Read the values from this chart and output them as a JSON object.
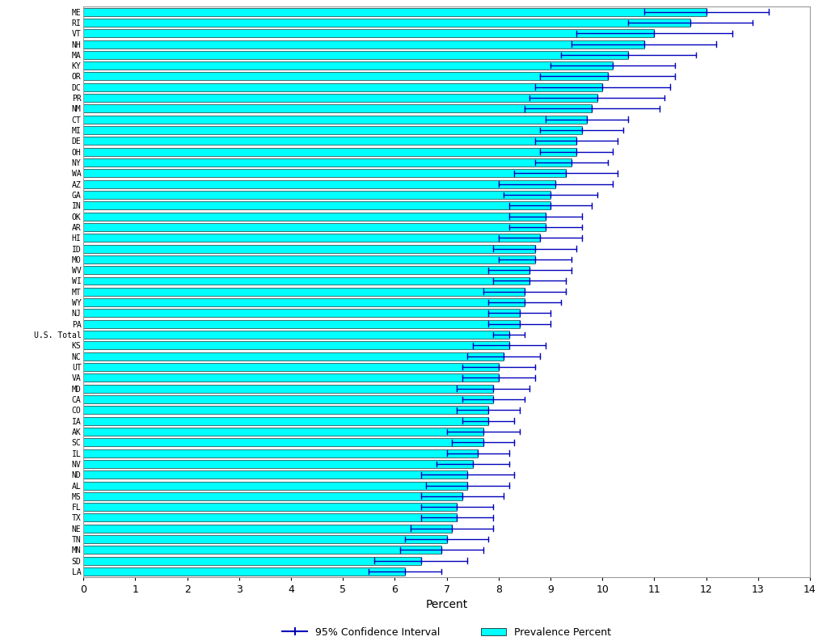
{
  "xlabel": "Percent",
  "xlim": [
    0,
    14
  ],
  "xticks": [
    0,
    1,
    2,
    3,
    4,
    5,
    6,
    7,
    8,
    9,
    10,
    11,
    12,
    13,
    14
  ],
  "bar_color": "#00FFFF",
  "bar_edge_color": "#000000",
  "ci_color": "#0000BB",
  "states": [
    "ME",
    "RI",
    "VT",
    "NH",
    "MA",
    "KY",
    "OR",
    "DC",
    "PR",
    "NM",
    "CT",
    "MI",
    "DE",
    "OH",
    "NY",
    "WA",
    "AZ",
    "GA",
    "IN",
    "OK",
    "AR",
    "HI",
    "ID",
    "MO",
    "WV",
    "WI",
    "MT",
    "WY",
    "NJ",
    "PA",
    "U.S. Total",
    "KS",
    "NC",
    "UT",
    "VA",
    "MD",
    "CA",
    "CO",
    "IA",
    "AK",
    "SC",
    "IL",
    "NV",
    "ND",
    "AL",
    "MS",
    "FL",
    "TX",
    "NE",
    "TN",
    "MN",
    "SD",
    "LA"
  ],
  "prevalence": [
    12.0,
    11.7,
    11.0,
    10.8,
    10.5,
    10.2,
    10.1,
    10.0,
    9.9,
    9.8,
    9.7,
    9.6,
    9.5,
    9.5,
    9.4,
    9.3,
    9.1,
    9.0,
    9.0,
    8.9,
    8.9,
    8.8,
    8.7,
    8.7,
    8.6,
    8.6,
    8.5,
    8.5,
    8.4,
    8.4,
    8.2,
    8.2,
    8.1,
    8.0,
    8.0,
    7.9,
    7.9,
    7.8,
    7.8,
    7.7,
    7.7,
    7.6,
    7.5,
    7.4,
    7.4,
    7.3,
    7.2,
    7.2,
    7.1,
    7.0,
    6.9,
    6.5,
    6.2
  ],
  "ci_low": [
    10.8,
    10.5,
    9.5,
    9.4,
    9.2,
    9.0,
    8.8,
    8.7,
    8.6,
    8.5,
    8.9,
    8.8,
    8.7,
    8.8,
    8.7,
    8.3,
    8.0,
    8.1,
    8.2,
    8.2,
    8.2,
    8.0,
    7.9,
    8.0,
    7.8,
    7.9,
    7.7,
    7.8,
    7.8,
    7.8,
    7.9,
    7.5,
    7.4,
    7.3,
    7.3,
    7.2,
    7.3,
    7.2,
    7.3,
    7.0,
    7.1,
    7.0,
    6.8,
    6.5,
    6.6,
    6.5,
    6.5,
    6.5,
    6.3,
    6.2,
    6.1,
    5.6,
    5.5
  ],
  "ci_high": [
    13.2,
    12.9,
    12.5,
    12.2,
    11.8,
    11.4,
    11.4,
    11.3,
    11.2,
    11.1,
    10.5,
    10.4,
    10.3,
    10.2,
    10.1,
    10.3,
    10.2,
    9.9,
    9.8,
    9.6,
    9.6,
    9.6,
    9.5,
    9.4,
    9.4,
    9.3,
    9.3,
    9.2,
    9.0,
    9.0,
    8.5,
    8.9,
    8.8,
    8.7,
    8.7,
    8.6,
    8.5,
    8.4,
    8.3,
    8.4,
    8.3,
    8.2,
    8.2,
    8.3,
    8.2,
    8.1,
    7.9,
    7.9,
    7.9,
    7.8,
    7.7,
    7.4,
    6.9
  ],
  "figsize": [
    10.33,
    7.93
  ],
  "dpi": 100
}
